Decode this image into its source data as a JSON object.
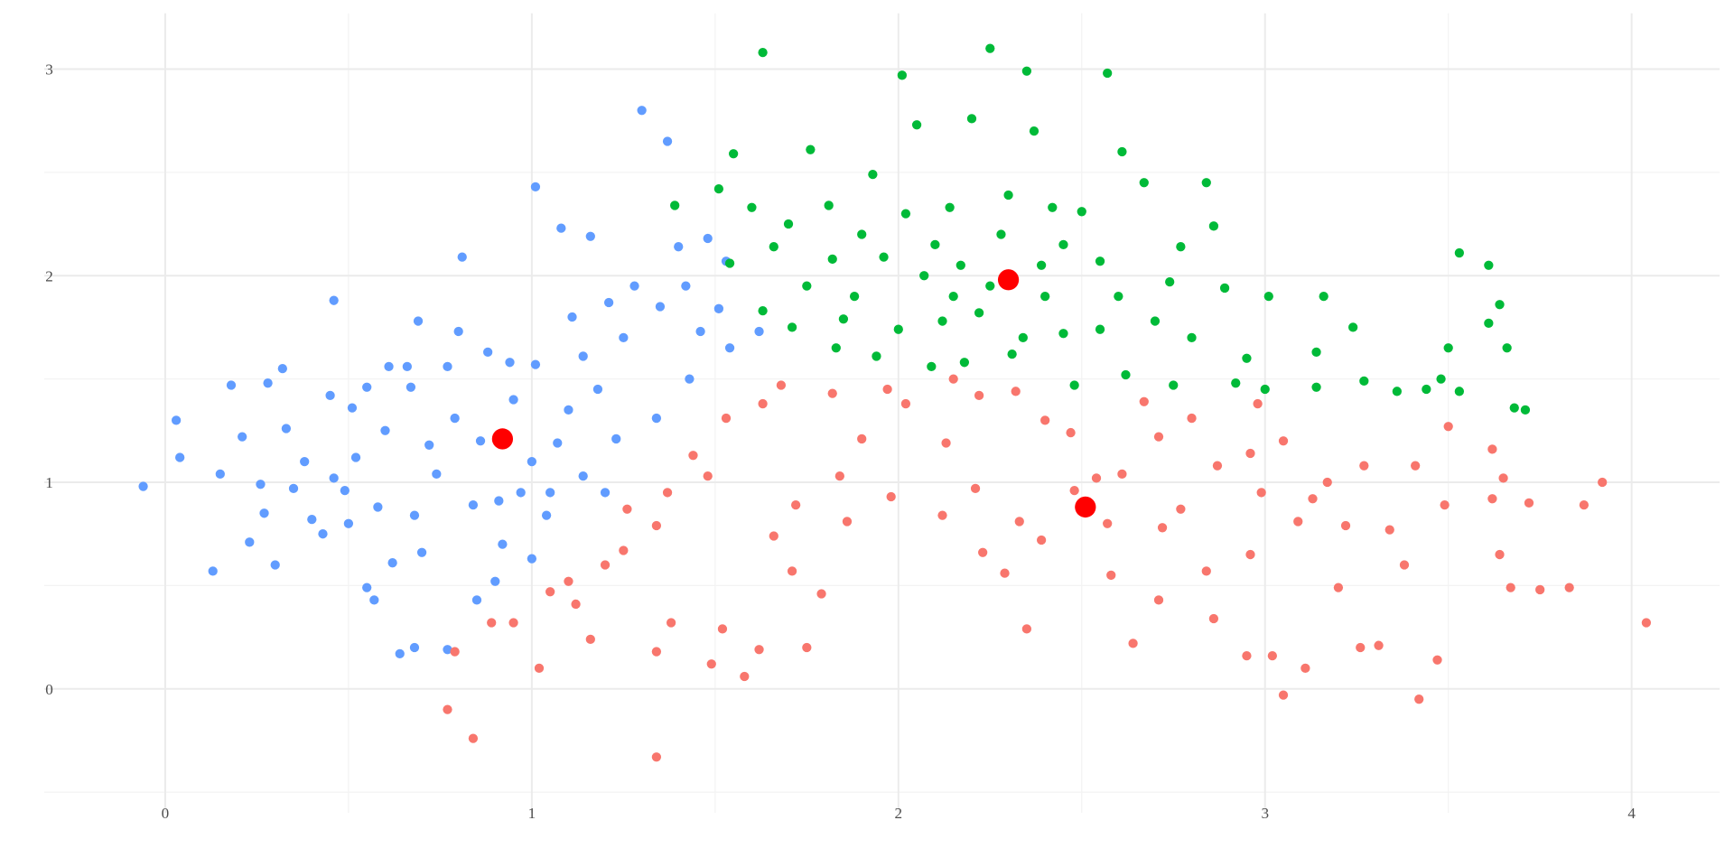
{
  "chart_data": {
    "type": "scatter",
    "title": "",
    "xlabel": "",
    "ylabel": "",
    "xlim": [
      -0.33,
      4.24
    ],
    "ylim": [
      -0.6,
      3.27
    ],
    "x_ticks": [
      0,
      1,
      2,
      3,
      4
    ],
    "x_tick_labels": [
      "0",
      "1",
      "2",
      "3",
      "4"
    ],
    "y_ticks": [
      0,
      1,
      2,
      3
    ],
    "y_tick_labels": [
      "0",
      "1",
      "2",
      "3"
    ],
    "grid": true,
    "legend": "none",
    "series": [
      {
        "color": "#619CFF",
        "points": [
          [
            -0.06,
            0.98
          ],
          [
            0.03,
            1.3
          ],
          [
            0.04,
            1.12
          ],
          [
            0.13,
            0.57
          ],
          [
            0.15,
            1.04
          ],
          [
            0.18,
            1.47
          ],
          [
            0.21,
            1.22
          ],
          [
            0.23,
            0.71
          ],
          [
            0.26,
            0.99
          ],
          [
            0.28,
            1.48
          ],
          [
            0.3,
            0.6
          ],
          [
            0.32,
            1.55
          ],
          [
            0.33,
            1.26
          ],
          [
            0.35,
            0.97
          ],
          [
            0.4,
            0.82
          ],
          [
            0.43,
            0.75
          ],
          [
            0.45,
            1.42
          ],
          [
            0.46,
            1.88
          ],
          [
            0.46,
            1.02
          ],
          [
            0.49,
            0.96
          ],
          [
            0.51,
            1.36
          ],
          [
            0.52,
            1.12
          ],
          [
            0.55,
            0.49
          ],
          [
            0.57,
            0.43
          ],
          [
            0.55,
            1.46
          ],
          [
            0.6,
            1.25
          ],
          [
            0.61,
            1.56
          ],
          [
            0.64,
            0.17
          ],
          [
            0.62,
            0.61
          ],
          [
            0.66,
            1.56
          ],
          [
            0.68,
            0.2
          ],
          [
            0.68,
            0.84
          ],
          [
            0.69,
            1.78
          ],
          [
            0.72,
            1.18
          ],
          [
            0.74,
            1.04
          ],
          [
            0.77,
            0.19
          ],
          [
            0.77,
            1.56
          ],
          [
            0.79,
            1.31
          ],
          [
            0.81,
            2.09
          ],
          [
            0.8,
            1.73
          ],
          [
            0.84,
            0.89
          ],
          [
            0.85,
            0.43
          ],
          [
            0.88,
            1.63
          ],
          [
            0.9,
            0.52
          ],
          [
            0.91,
            0.91
          ],
          [
            0.94,
            1.58
          ],
          [
            0.97,
            0.95
          ],
          [
            1.01,
            1.57
          ],
          [
            1.01,
            2.43
          ],
          [
            1.04,
            0.84
          ],
          [
            1.07,
            1.19
          ],
          [
            1.08,
            2.23
          ],
          [
            1.11,
            1.8
          ],
          [
            1.14,
            1.61
          ],
          [
            1.16,
            2.19
          ],
          [
            1.2,
            0.95
          ],
          [
            1.21,
            1.87
          ],
          [
            1.23,
            1.21
          ],
          [
            1.28,
            1.95
          ],
          [
            1.3,
            2.8
          ],
          [
            1.34,
            1.31
          ],
          [
            1.37,
            2.65
          ],
          [
            1.4,
            2.14
          ],
          [
            1.43,
            1.5
          ],
          [
            1.48,
            2.18
          ],
          [
            1.53,
            2.07
          ],
          [
            1.51,
            1.84
          ],
          [
            1.54,
            1.65
          ],
          [
            1.62,
            1.73
          ],
          [
            1.46,
            1.73
          ],
          [
            1.14,
            1.03
          ],
          [
            0.38,
            1.1
          ],
          [
            0.58,
            0.88
          ],
          [
            0.7,
            0.66
          ],
          [
            0.86,
            1.2
          ],
          [
            0.95,
            1.4
          ],
          [
            1.0,
            1.1
          ],
          [
            1.05,
            0.95
          ],
          [
            1.1,
            1.35
          ],
          [
            1.18,
            1.45
          ],
          [
            1.25,
            1.7
          ],
          [
            1.35,
            1.85
          ],
          [
            1.42,
            1.95
          ],
          [
            0.92,
            0.7
          ],
          [
            1.0,
            0.63
          ],
          [
            0.67,
            1.46
          ],
          [
            0.5,
            0.8
          ],
          [
            0.27,
            0.85
          ]
        ]
      },
      {
        "color": "#00BA38",
        "points": [
          [
            1.63,
            3.08
          ],
          [
            2.25,
            3.1
          ],
          [
            2.35,
            2.99
          ],
          [
            2.57,
            2.98
          ],
          [
            2.01,
            2.97
          ],
          [
            1.55,
            2.59
          ],
          [
            1.76,
            2.61
          ],
          [
            2.2,
            2.76
          ],
          [
            2.05,
            2.73
          ],
          [
            2.61,
            2.6
          ],
          [
            2.37,
            2.7
          ],
          [
            1.39,
            2.34
          ],
          [
            1.51,
            2.42
          ],
          [
            1.6,
            2.33
          ],
          [
            1.81,
            2.34
          ],
          [
            1.93,
            2.49
          ],
          [
            2.14,
            2.33
          ],
          [
            2.3,
            2.39
          ],
          [
            2.42,
            2.33
          ],
          [
            2.5,
            2.31
          ],
          [
            2.67,
            2.45
          ],
          [
            2.84,
            2.45
          ],
          [
            2.86,
            2.24
          ],
          [
            2.77,
            2.14
          ],
          [
            1.54,
            2.06
          ],
          [
            1.66,
            2.14
          ],
          [
            1.82,
            2.08
          ],
          [
            1.96,
            2.09
          ],
          [
            2.07,
            2.0
          ],
          [
            2.17,
            2.05
          ],
          [
            2.39,
            2.05
          ],
          [
            2.55,
            2.07
          ],
          [
            2.74,
            1.97
          ],
          [
            1.63,
            1.83
          ],
          [
            1.71,
            1.75
          ],
          [
            1.85,
            1.79
          ],
          [
            2.0,
            1.74
          ],
          [
            2.12,
            1.78
          ],
          [
            2.22,
            1.82
          ],
          [
            2.34,
            1.7
          ],
          [
            2.45,
            1.72
          ],
          [
            2.55,
            1.74
          ],
          [
            2.7,
            1.78
          ],
          [
            2.89,
            1.94
          ],
          [
            3.01,
            1.9
          ],
          [
            3.16,
            1.9
          ],
          [
            3.24,
            1.75
          ],
          [
            3.14,
            1.63
          ],
          [
            3.27,
            1.49
          ],
          [
            3.14,
            1.46
          ],
          [
            3.36,
            1.44
          ],
          [
            3.44,
            1.45
          ],
          [
            3.48,
            1.5
          ],
          [
            3.5,
            1.65
          ],
          [
            3.61,
            2.05
          ],
          [
            3.68,
            1.36
          ],
          [
            3.71,
            1.35
          ],
          [
            3.66,
            1.65
          ],
          [
            3.61,
            1.77
          ],
          [
            3.53,
            1.44
          ],
          [
            3.64,
            1.86
          ],
          [
            3.53,
            2.11
          ],
          [
            3.0,
            1.45
          ],
          [
            2.92,
            1.48
          ],
          [
            2.75,
            1.47
          ],
          [
            2.62,
            1.52
          ],
          [
            2.48,
            1.47
          ],
          [
            2.31,
            1.62
          ],
          [
            2.18,
            1.58
          ],
          [
            2.09,
            1.56
          ],
          [
            1.94,
            1.61
          ],
          [
            1.83,
            1.65
          ],
          [
            1.9,
            2.2
          ],
          [
            2.02,
            2.3
          ],
          [
            2.1,
            2.15
          ],
          [
            2.28,
            2.2
          ],
          [
            2.45,
            2.15
          ],
          [
            2.6,
            1.9
          ],
          [
            1.75,
            1.95
          ],
          [
            1.88,
            1.9
          ],
          [
            2.25,
            1.95
          ],
          [
            2.4,
            1.9
          ],
          [
            2.8,
            1.7
          ],
          [
            2.95,
            1.6
          ],
          [
            1.7,
            2.25
          ],
          [
            2.15,
            1.9
          ]
        ]
      },
      {
        "color": "#F8766D",
        "points": [
          [
            0.77,
            -0.1
          ],
          [
            0.84,
            -0.24
          ],
          [
            1.34,
            -0.33
          ],
          [
            3.05,
            -0.03
          ],
          [
            3.42,
            -0.05
          ],
          [
            4.04,
            0.32
          ],
          [
            3.92,
            1.0
          ],
          [
            3.87,
            0.89
          ],
          [
            3.75,
            0.48
          ],
          [
            3.67,
            0.49
          ],
          [
            0.79,
            0.18
          ],
          [
            0.95,
            0.32
          ],
          [
            1.02,
            0.1
          ],
          [
            1.16,
            0.24
          ],
          [
            1.34,
            0.18
          ],
          [
            1.49,
            0.12
          ],
          [
            1.58,
            0.06
          ],
          [
            1.62,
            0.19
          ],
          [
            1.75,
            0.2
          ],
          [
            1.79,
            0.46
          ],
          [
            1.71,
            0.57
          ],
          [
            1.52,
            0.29
          ],
          [
            1.38,
            0.32
          ],
          [
            1.2,
            0.6
          ],
          [
            1.12,
            0.41
          ],
          [
            1.34,
            0.79
          ],
          [
            1.44,
            1.13
          ],
          [
            1.53,
            1.31
          ],
          [
            1.68,
            1.47
          ],
          [
            1.82,
            1.43
          ],
          [
            1.97,
            1.45
          ],
          [
            2.02,
            1.38
          ],
          [
            2.15,
            1.5
          ],
          [
            2.22,
            1.42
          ],
          [
            2.32,
            1.44
          ],
          [
            2.4,
            1.3
          ],
          [
            1.98,
            0.93
          ],
          [
            2.12,
            0.84
          ],
          [
            2.23,
            0.66
          ],
          [
            2.29,
            0.56
          ],
          [
            2.35,
            0.29
          ],
          [
            2.39,
            0.72
          ],
          [
            2.48,
            0.96
          ],
          [
            2.57,
            0.8
          ],
          [
            2.64,
            0.22
          ],
          [
            2.71,
            0.43
          ],
          [
            2.86,
            0.34
          ],
          [
            2.95,
            0.16
          ],
          [
            3.02,
            0.16
          ],
          [
            3.11,
            0.1
          ],
          [
            2.96,
            0.65
          ],
          [
            3.09,
            0.81
          ],
          [
            3.17,
            1.0
          ],
          [
            3.34,
            0.77
          ],
          [
            3.27,
            1.08
          ],
          [
            3.41,
            1.08
          ],
          [
            3.5,
            1.27
          ],
          [
            3.49,
            0.89
          ],
          [
            3.62,
            0.92
          ],
          [
            3.64,
            0.65
          ],
          [
            3.65,
            1.02
          ],
          [
            3.62,
            1.16
          ],
          [
            3.47,
            0.14
          ],
          [
            3.31,
            0.21
          ],
          [
            3.26,
            0.2
          ],
          [
            2.8,
            1.31
          ],
          [
            2.71,
            1.22
          ],
          [
            2.61,
            1.04
          ],
          [
            2.54,
            1.02
          ],
          [
            2.47,
            1.24
          ],
          [
            2.87,
            1.08
          ],
          [
            2.96,
            1.14
          ],
          [
            3.05,
            1.2
          ],
          [
            2.98,
            1.38
          ],
          [
            2.84,
            0.57
          ],
          [
            2.72,
            0.78
          ],
          [
            2.67,
            1.39
          ],
          [
            3.2,
            0.49
          ],
          [
            3.38,
            0.6
          ],
          [
            1.66,
            0.74
          ],
          [
            1.63,
            1.38
          ],
          [
            1.48,
            1.03
          ],
          [
            1.37,
            0.95
          ],
          [
            1.26,
            0.87
          ],
          [
            1.86,
            0.81
          ],
          [
            1.9,
            1.21
          ],
          [
            1.84,
            1.03
          ],
          [
            1.72,
            0.89
          ],
          [
            2.13,
            1.19
          ],
          [
            2.21,
            0.97
          ],
          [
            2.33,
            0.81
          ],
          [
            2.58,
            0.55
          ],
          [
            2.77,
            0.87
          ],
          [
            3.13,
            0.92
          ],
          [
            3.22,
            0.79
          ],
          [
            2.99,
            0.95
          ],
          [
            0.89,
            0.32
          ],
          [
            1.05,
            0.47
          ],
          [
            1.1,
            0.52
          ],
          [
            1.25,
            0.67
          ],
          [
            3.83,
            0.49
          ],
          [
            3.72,
            0.9
          ]
        ]
      }
    ],
    "centers": {
      "color": "#FF0000",
      "points": [
        [
          0.92,
          1.21
        ],
        [
          2.3,
          1.98
        ],
        [
          2.51,
          0.88
        ]
      ]
    }
  }
}
